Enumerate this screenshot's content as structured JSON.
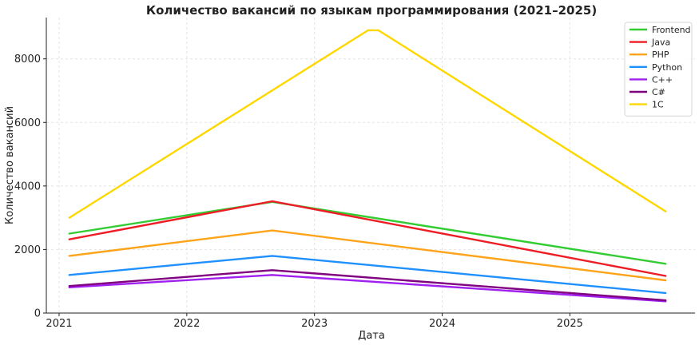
{
  "chart_data": {
    "type": "line",
    "title": "Количество вакансий по языкам программирования (2021–2025)",
    "xlabel": "Дата",
    "ylabel": "Количество вакансий",
    "x_ticks": [
      "2021",
      "2022",
      "2023",
      "2024",
      "2025"
    ],
    "x_tick_values": [
      2021.0,
      2022.0,
      2023.0,
      2024.0,
      2025.0
    ],
    "y_ticks": [
      "0",
      "2000",
      "4000",
      "6000",
      "8000"
    ],
    "y_tick_values": [
      0,
      2000,
      4000,
      6000,
      8000
    ],
    "xlim": [
      2020.9,
      2025.98
    ],
    "ylim": [
      0,
      9300
    ],
    "grid": true,
    "legend_position": "top-right",
    "series": [
      {
        "name": "Frontend",
        "color": "#33cc33",
        "points": [
          [
            2021.08,
            2500
          ],
          [
            2022.67,
            3500
          ],
          [
            2025.75,
            1550
          ]
        ]
      },
      {
        "name": "Java",
        "color": "#ee1c25",
        "points": [
          [
            2021.08,
            2320
          ],
          [
            2022.67,
            3520
          ],
          [
            2025.75,
            1170
          ]
        ]
      },
      {
        "name": "PHP",
        "color": "#ffa31a",
        "points": [
          [
            2021.08,
            1800
          ],
          [
            2022.67,
            2600
          ],
          [
            2025.75,
            1030
          ]
        ]
      },
      {
        "name": "Python",
        "color": "#1e90ff",
        "points": [
          [
            2021.08,
            1200
          ],
          [
            2022.67,
            1800
          ],
          [
            2025.75,
            630
          ]
        ]
      },
      {
        "name": "C++",
        "color": "#a020f0",
        "points": [
          [
            2021.08,
            810
          ],
          [
            2022.67,
            1200
          ],
          [
            2025.75,
            370
          ]
        ]
      },
      {
        "name": "C#",
        "color": "#800080",
        "points": [
          [
            2021.08,
            850
          ],
          [
            2022.67,
            1350
          ],
          [
            2025.75,
            400
          ]
        ]
      },
      {
        "name": "1C",
        "color": "#ffd700",
        "points": [
          [
            2021.08,
            3000
          ],
          [
            2023.42,
            8900
          ],
          [
            2023.5,
            8900
          ],
          [
            2025.75,
            3200
          ]
        ]
      }
    ]
  }
}
